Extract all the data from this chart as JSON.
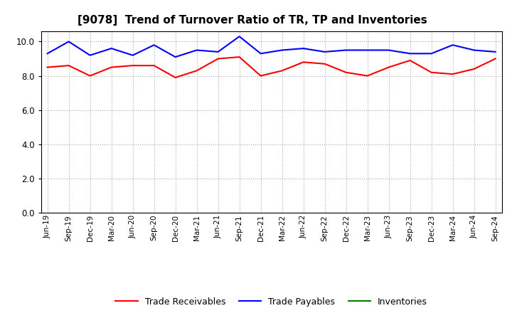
{
  "title": "[9078]  Trend of Turnover Ratio of TR, TP and Inventories",
  "x_labels": [
    "Jun-19",
    "Sep-19",
    "Dec-19",
    "Mar-20",
    "Jun-20",
    "Sep-20",
    "Dec-20",
    "Mar-21",
    "Jun-21",
    "Sep-21",
    "Dec-21",
    "Mar-22",
    "Jun-22",
    "Sep-22",
    "Dec-22",
    "Mar-23",
    "Jun-23",
    "Sep-23",
    "Dec-23",
    "Mar-24",
    "Jun-24",
    "Sep-24"
  ],
  "trade_receivables": [
    8.5,
    8.6,
    8.0,
    8.5,
    8.6,
    8.6,
    7.9,
    8.3,
    9.0,
    9.1,
    8.0,
    8.3,
    8.8,
    8.7,
    8.2,
    8.0,
    8.5,
    8.9,
    8.2,
    8.1,
    8.4,
    9.0
  ],
  "trade_payables": [
    9.3,
    10.0,
    9.2,
    9.6,
    9.2,
    9.8,
    9.1,
    9.5,
    9.4,
    10.3,
    9.3,
    9.5,
    9.6,
    9.4,
    9.5,
    9.5,
    9.5,
    9.3,
    9.3,
    9.8,
    9.5,
    9.4
  ],
  "inventories": [
    null,
    null,
    null,
    null,
    null,
    null,
    null,
    null,
    null,
    null,
    null,
    null,
    null,
    null,
    null,
    null,
    null,
    null,
    null,
    null,
    null,
    null
  ],
  "ylim": [
    0.0,
    10.6
  ],
  "yticks": [
    0.0,
    2.0,
    4.0,
    6.0,
    8.0,
    10.0
  ],
  "tr_color": "#ff0000",
  "tp_color": "#0000ff",
  "inv_color": "#008000",
  "bg_color": "#ffffff",
  "grid_color": "#aaaaaa",
  "title_fontsize": 11,
  "legend_labels": [
    "Trade Receivables",
    "Trade Payables",
    "Inventories"
  ]
}
